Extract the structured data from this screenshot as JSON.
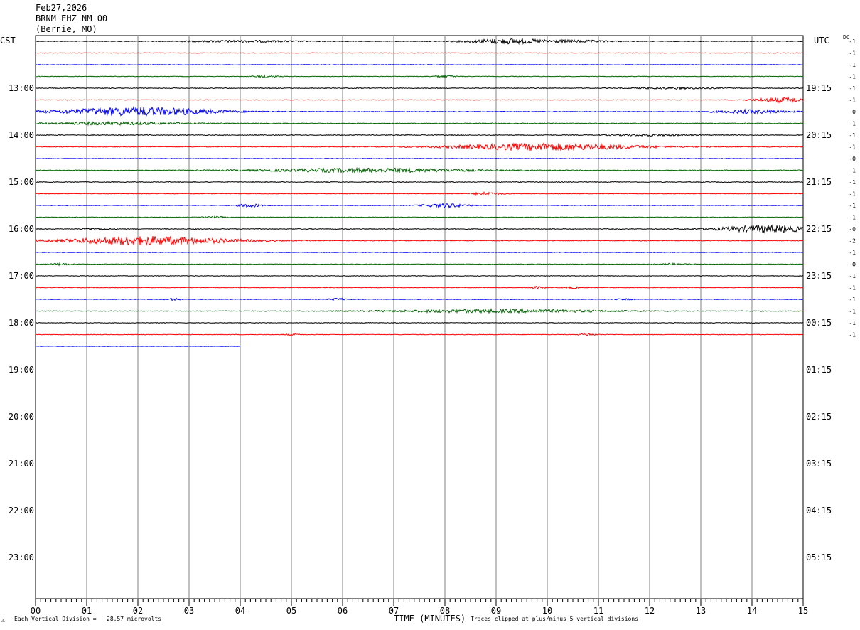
{
  "header": {
    "date": "Feb27,2026",
    "station": "BRNM EHZ NM 00",
    "location": "(Bernie, MO)"
  },
  "tz_left": "CST",
  "tz_right": "UTC",
  "dc_label": "DC",
  "footer": {
    "left": "Each Vertical Division =   28.57 microvolts",
    "right": "Traces clipped at plus/minus 5 vertical divisions",
    "corner": "⚠"
  },
  "chart_data": {
    "type": "line",
    "title": "",
    "xlabel": "TIME (MINUTES)",
    "xlim": [
      0,
      15
    ],
    "x_ticks": [
      "00",
      "01",
      "02",
      "03",
      "04",
      "05",
      "06",
      "07",
      "08",
      "09",
      "10",
      "11",
      "12",
      "13",
      "14",
      "15"
    ],
    "left_hour_labels": [
      "13:00",
      "14:00",
      "15:00",
      "16:00",
      "17:00",
      "18:00",
      "19:00",
      "20:00",
      "21:00",
      "22:00",
      "23:00"
    ],
    "right_hour_labels": [
      "19:15",
      "20:15",
      "21:15",
      "22:15",
      "23:15",
      "00:15",
      "01:15",
      "02:15",
      "03:15",
      "04:15",
      "05:15"
    ],
    "trace_colors": [
      "#000000",
      "#ff0000",
      "#0000ff",
      "#006400"
    ],
    "dc_offsets": [
      "-1",
      "-1",
      "-1",
      "-1",
      "-1",
      "-1",
      "0",
      "-1",
      "-1",
      "-1",
      "-0",
      "-1",
      "-1",
      "-1",
      "-1",
      "-1",
      "-0",
      "-2",
      "-1",
      "-0",
      "-1",
      "-1",
      "-1",
      "-1",
      "-1",
      "-1"
    ],
    "traces": [
      {
        "start": 0,
        "end": 15,
        "noise": 0.5,
        "events": [
          [
            4.0,
            3.0,
            1.2
          ],
          [
            9.2,
            2.0,
            3.5
          ],
          [
            10.5,
            2.0,
            1.5
          ]
        ]
      },
      {
        "start": 0,
        "end": 15,
        "noise": 0.4,
        "events": []
      },
      {
        "start": 0,
        "end": 15,
        "noise": 0.4,
        "events": []
      },
      {
        "start": 0,
        "end": 15,
        "noise": 0.4,
        "events": [
          [
            4.5,
            0.6,
            1.5
          ],
          [
            8.0,
            0.6,
            1.5
          ]
        ]
      },
      {
        "start": 0,
        "end": 15,
        "noise": 0.5,
        "events": [
          [
            12.5,
            2.0,
            1.0
          ]
        ]
      },
      {
        "start": 0,
        "end": 15,
        "noise": 0.4,
        "events": [
          [
            14.6,
            1.5,
            3.5
          ]
        ]
      },
      {
        "start": 0,
        "end": 15,
        "noise": 0.5,
        "events": [
          [
            2.0,
            4.2,
            6.0
          ],
          [
            14.0,
            2.0,
            2.5
          ]
        ]
      },
      {
        "start": 0,
        "end": 15,
        "noise": 0.5,
        "events": [
          [
            1.5,
            3.5,
            2.0
          ]
        ]
      },
      {
        "start": 0,
        "end": 15,
        "noise": 0.5,
        "events": [
          [
            12.0,
            2.0,
            1.0
          ]
        ]
      },
      {
        "start": 0,
        "end": 15,
        "noise": 0.5,
        "events": [
          [
            10.0,
            5.0,
            5.0
          ]
        ]
      },
      {
        "start": 0,
        "end": 15,
        "noise": 0.4,
        "events": []
      },
      {
        "start": 0,
        "end": 15,
        "noise": 0.5,
        "events": [
          [
            6.5,
            5.5,
            3.0
          ]
        ]
      },
      {
        "start": 0,
        "end": 15,
        "noise": 0.5,
        "events": []
      },
      {
        "start": 0,
        "end": 15,
        "noise": 0.4,
        "events": [
          [
            8.8,
            0.8,
            2.0
          ]
        ]
      },
      {
        "start": 0,
        "end": 15,
        "noise": 0.4,
        "events": [
          [
            4.2,
            0.6,
            2.5
          ],
          [
            8.0,
            1.2,
            2.8
          ]
        ]
      },
      {
        "start": 0,
        "end": 15,
        "noise": 0.4,
        "events": [
          [
            3.5,
            0.6,
            1.0
          ]
        ]
      },
      {
        "start": 0,
        "end": 15,
        "noise": 0.5,
        "events": [
          [
            1.2,
            0.6,
            1.2
          ],
          [
            14.3,
            2.5,
            5.0
          ]
        ]
      },
      {
        "start": 0,
        "end": 15,
        "noise": 0.5,
        "events": [
          [
            2.2,
            4.4,
            6.0
          ]
        ]
      },
      {
        "start": 0,
        "end": 15,
        "noise": 0.4,
        "events": []
      },
      {
        "start": 0,
        "end": 15,
        "noise": 0.4,
        "events": [
          [
            0.5,
            0.5,
            1.5
          ],
          [
            12.5,
            0.8,
            1.0
          ]
        ]
      },
      {
        "start": 0,
        "end": 15,
        "noise": 0.4,
        "events": []
      },
      {
        "start": 0,
        "end": 15,
        "noise": 0.4,
        "events": [
          [
            9.8,
            0.4,
            1.5
          ],
          [
            10.5,
            0.4,
            1.2
          ]
        ]
      },
      {
        "start": 0,
        "end": 15,
        "noise": 0.4,
        "events": [
          [
            2.7,
            0.4,
            1.5
          ],
          [
            5.9,
            0.5,
            1.5
          ],
          [
            11.5,
            0.5,
            0.8
          ]
        ]
      },
      {
        "start": 0,
        "end": 15,
        "noise": 0.5,
        "events": [
          [
            9.0,
            6.0,
            2.2
          ]
        ]
      },
      {
        "start": 0,
        "end": 15,
        "noise": 0.4,
        "events": []
      },
      {
        "start": 0,
        "end": 15,
        "noise": 0.4,
        "events": [
          [
            5.0,
            0.5,
            0.8
          ],
          [
            10.8,
            0.5,
            1.2
          ]
        ]
      },
      {
        "start": 0,
        "end": 4.0,
        "noise": 0.3,
        "events": []
      }
    ]
  }
}
